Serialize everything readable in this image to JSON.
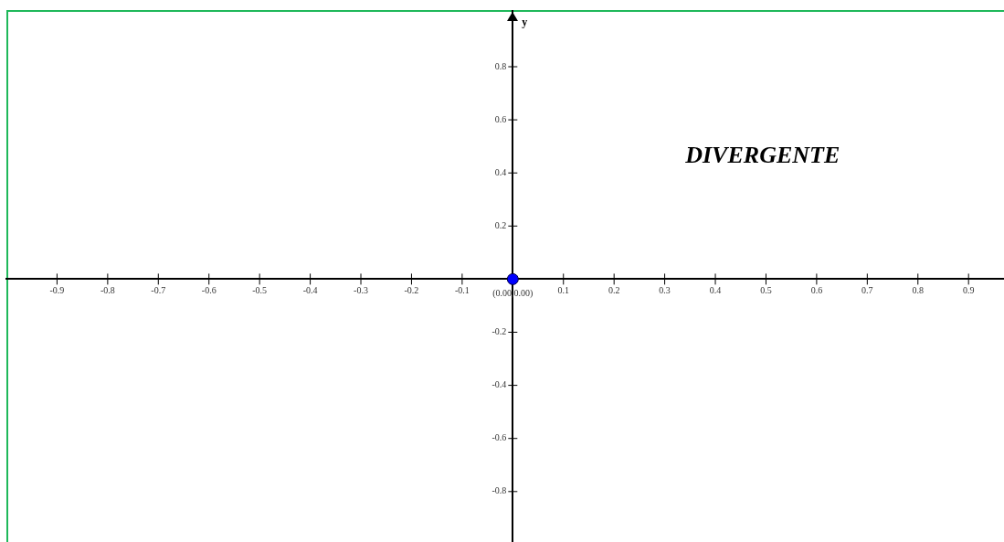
{
  "chart_data": {
    "type": "scatter",
    "x": [
      0
    ],
    "values": [
      0
    ],
    "color": "#0000ff",
    "marker": "circle",
    "xlim": [
      -1.0,
      0.97
    ],
    "ylim": [
      -0.99,
      1.01
    ],
    "xticks": [
      -0.9,
      -0.8,
      -0.7,
      -0.6,
      -0.5,
      -0.4,
      -0.3,
      -0.2,
      -0.1,
      0.1,
      0.2,
      0.3,
      0.4,
      0.5,
      0.6,
      0.7,
      0.8,
      0.9
    ],
    "yticks": [
      -0.8,
      -0.6,
      -0.4,
      -0.2,
      0.2,
      0.4,
      0.6,
      0.8
    ],
    "ylabel": "y",
    "annotations": [
      {
        "text": "(0.00,0.00)",
        "x": 0,
        "y": 0
      },
      "DIVERGENTE"
    ]
  }
}
